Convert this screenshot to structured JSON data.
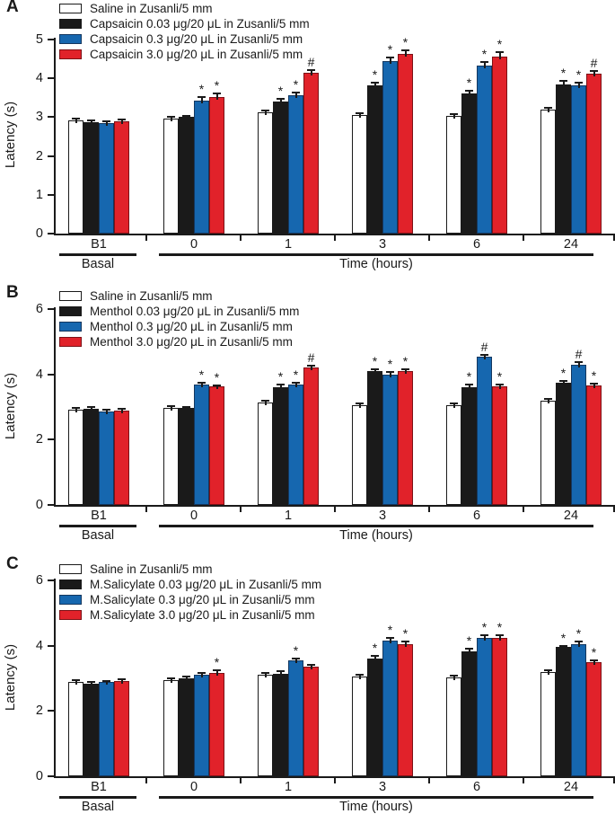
{
  "figure": {
    "ylabel_shared": "Latency (s)",
    "colors": {
      "white_bar": "#ffffff",
      "black_bar": "#1a1a1a",
      "blue_bar": "#1667af",
      "red_bar": "#e1222a",
      "axis": "#1a1a1a"
    },
    "significance_symbols": [
      "*",
      "#"
    ]
  },
  "chart_data": [
    {
      "type": "bar",
      "panel_label": "A",
      "ylabel": "Latency (s)",
      "ylim": [
        0,
        5
      ],
      "yticks": [
        "0",
        "1",
        "2",
        "3",
        "4",
        "5"
      ],
      "grid": false,
      "legend_position": "top-left",
      "categories": [
        "B1",
        "0",
        "1",
        "3",
        "6",
        "24"
      ],
      "section_labels": {
        "basal": "Basal",
        "time": "Time (hours)"
      },
      "series": [
        {
          "name": "Saline in Zusanli/5 mm",
          "fill": "#ffffff",
          "edge": "#1a1a1a",
          "values": [
            2.92,
            2.97,
            3.13,
            3.05,
            3.03,
            3.2
          ],
          "errors": [
            0.05,
            0.05,
            0.04,
            0.05,
            0.06,
            0.04
          ],
          "sig": [
            "",
            "",
            "",
            "",
            "",
            ""
          ]
        },
        {
          "name": "Capsaicin 0.03 μg/20 μL in Zusanli/5 mm",
          "fill": "#1a1a1a",
          "edge": "#1a1a1a",
          "values": [
            2.86,
            3.0,
            3.4,
            3.83,
            3.62,
            3.85
          ],
          "errors": [
            0.05,
            0.04,
            0.07,
            0.05,
            0.07,
            0.08
          ],
          "sig": [
            "",
            "",
            "*",
            "*",
            "*",
            "*"
          ]
        },
        {
          "name": "Capsaicin 0.3 μg/20 μL in Zusanli/5 mm",
          "fill": "#1667af",
          "edge": "#14375f",
          "values": [
            2.84,
            3.42,
            3.57,
            4.45,
            4.33,
            3.83
          ],
          "errors": [
            0.05,
            0.1,
            0.06,
            0.09,
            0.1,
            0.07
          ],
          "sig": [
            "",
            "*",
            "*",
            "*",
            "*",
            "*"
          ]
        },
        {
          "name": "Capsaicin 3.0 μg/20 μL in Zusanli/5 mm",
          "fill": "#e1222a",
          "edge": "#7c1116",
          "values": [
            2.9,
            3.52,
            4.15,
            4.63,
            4.55,
            4.12
          ],
          "errors": [
            0.04,
            0.09,
            0.07,
            0.1,
            0.12,
            0.07
          ],
          "sig": [
            "",
            "*",
            "#",
            "*",
            "*",
            "#"
          ]
        }
      ]
    },
    {
      "type": "bar",
      "panel_label": "B",
      "ylabel": "Latency (s)",
      "ylim": [
        0,
        6
      ],
      "yticks": [
        "0",
        "2",
        "4",
        "6"
      ],
      "grid": false,
      "legend_position": "top-left",
      "categories": [
        "B1",
        "0",
        "1",
        "3",
        "6",
        "24"
      ],
      "section_labels": {
        "basal": "Basal",
        "time": "Time (hours)"
      },
      "series": [
        {
          "name": "Saline in Zusanli/5 mm",
          "fill": "#ffffff",
          "edge": "#1a1a1a",
          "values": [
            2.93,
            2.98,
            3.13,
            3.05,
            3.05,
            3.2
          ],
          "errors": [
            0.04,
            0.04,
            0.05,
            0.05,
            0.06,
            0.05
          ],
          "sig": [
            "",
            "",
            "",
            "",
            "",
            ""
          ]
        },
        {
          "name": "Menthol 0.03 μg/20 μL in Zusanli/5 mm",
          "fill": "#1a1a1a",
          "edge": "#1a1a1a",
          "values": [
            2.95,
            2.96,
            3.6,
            4.1,
            3.6,
            3.75
          ],
          "errors": [
            0.04,
            0.05,
            0.08,
            0.06,
            0.09,
            0.06
          ],
          "sig": [
            "",
            "",
            "*",
            "*",
            "*",
            "*"
          ]
        },
        {
          "name": "Menthol 0.3 μg/20 μL in Zusanli/5 mm",
          "fill": "#1667af",
          "edge": "#14375f",
          "values": [
            2.87,
            3.68,
            3.68,
            4.0,
            4.55,
            4.3
          ],
          "errors": [
            0.05,
            0.05,
            0.05,
            0.06,
            0.05,
            0.08
          ],
          "sig": [
            "",
            "*",
            "*",
            "*",
            "#",
            "#"
          ]
        },
        {
          "name": "Menthol 3.0 μg/20 μL in Zusanli/5 mm",
          "fill": "#e1222a",
          "edge": "#7c1116",
          "values": [
            2.9,
            3.62,
            4.2,
            4.1,
            3.62,
            3.67
          ],
          "errors": [
            0.04,
            0.05,
            0.06,
            0.06,
            0.06,
            0.05
          ],
          "sig": [
            "",
            "*",
            "#",
            "*",
            "*",
            "*"
          ]
        }
      ]
    },
    {
      "type": "bar",
      "panel_label": "C",
      "ylabel": "Latency (s)",
      "ylim": [
        0,
        6
      ],
      "yticks": [
        "0",
        "2",
        "4",
        "6"
      ],
      "grid": false,
      "legend_position": "top-left",
      "categories": [
        "B1",
        "0",
        "1",
        "3",
        "6",
        "24"
      ],
      "section_labels": {
        "basal": "Basal",
        "time": "Time (hours)"
      },
      "series": [
        {
          "name": "Saline in Zusanli/5 mm",
          "fill": "#ffffff",
          "edge": "#1a1a1a",
          "values": [
            2.9,
            2.95,
            3.12,
            3.05,
            3.02,
            3.2
          ],
          "errors": [
            0.04,
            0.04,
            0.04,
            0.05,
            0.05,
            0.05
          ],
          "sig": [
            "",
            "",
            "",
            "",
            "",
            ""
          ]
        },
        {
          "name": "M.Salicylate 0.03 μg/20 μL in Zusanli/5 mm",
          "fill": "#1a1a1a",
          "edge": "#1a1a1a",
          "values": [
            2.84,
            3.0,
            3.15,
            3.6,
            3.82,
            3.95
          ],
          "errors": [
            0.05,
            0.05,
            0.06,
            0.08,
            0.09,
            0.05
          ],
          "sig": [
            "",
            "",
            "",
            "*",
            "*",
            "*"
          ]
        },
        {
          "name": "M.Salicylate 0.3 μg/20 μL in Zusanli/5 mm",
          "fill": "#1667af",
          "edge": "#14375f",
          "values": [
            2.88,
            3.1,
            3.55,
            4.15,
            4.25,
            4.05
          ],
          "errors": [
            0.05,
            0.06,
            0.05,
            0.08,
            0.07,
            0.07
          ],
          "sig": [
            "",
            "",
            "*",
            "*",
            "*",
            "*"
          ]
        },
        {
          "name": "M.Salicylate 3.0 μg/20 μL in Zusanli/5 mm",
          "fill": "#e1222a",
          "edge": "#7c1116",
          "values": [
            2.93,
            3.17,
            3.35,
            4.05,
            4.25,
            3.5
          ],
          "errors": [
            0.03,
            0.07,
            0.06,
            0.07,
            0.08,
            0.06
          ],
          "sig": [
            "",
            "*",
            "",
            "*",
            "*",
            "*"
          ]
        }
      ]
    }
  ]
}
